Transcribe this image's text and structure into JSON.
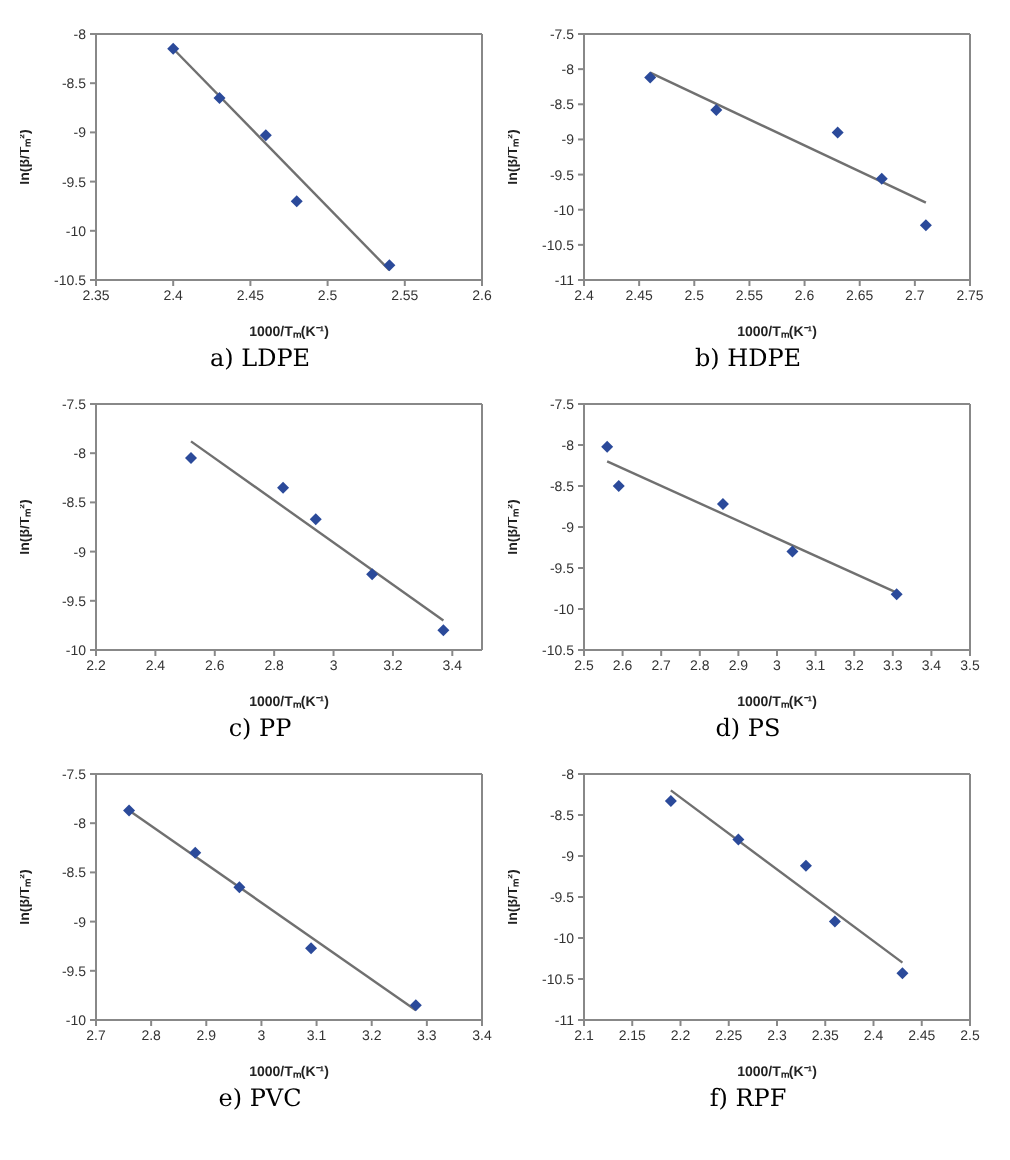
{
  "chart_data": [
    {
      "type": "scatter",
      "title": "a) LDPE",
      "xlabel": "1000/Tₘ(K⁻¹)",
      "ylabel": "ln(β/Tₘ²)",
      "xlim": [
        2.35,
        2.6
      ],
      "xticks": [
        2.35,
        2.4,
        2.45,
        2.5,
        2.55,
        2.6
      ],
      "ylim": [
        -10.5,
        -8
      ],
      "yticks": [
        -10.5,
        -10,
        -9.5,
        -9,
        -8.5,
        -8
      ],
      "series": [
        {
          "marker": "diamond",
          "color": "#2b4a9a",
          "x": [
            2.4,
            2.43,
            2.46,
            2.48,
            2.54
          ],
          "values": [
            -8.15,
            -8.65,
            -9.03,
            -9.7,
            -10.35
          ]
        },
        {
          "type": "line",
          "color": "#707070",
          "x": [
            2.4,
            2.54
          ],
          "values": [
            -8.15,
            -10.4
          ]
        }
      ]
    },
    {
      "type": "scatter",
      "title": "b) HDPE",
      "xlabel": "1000/Tₘ(K⁻¹)",
      "ylabel": "ln(β/Tₘ²)",
      "xlim": [
        2.4,
        2.75
      ],
      "xticks": [
        2.4,
        2.45,
        2.5,
        2.55,
        2.6,
        2.65,
        2.7,
        2.75
      ],
      "ylim": [
        -11,
        -7.5
      ],
      "yticks": [
        -11,
        -10.5,
        -10,
        -9.5,
        -9,
        -8.5,
        -8,
        -7.5
      ],
      "series": [
        {
          "marker": "diamond",
          "color": "#2b4a9a",
          "x": [
            2.46,
            2.52,
            2.63,
            2.67,
            2.71
          ],
          "values": [
            -8.12,
            -8.58,
            -8.9,
            -9.56,
            -10.22
          ]
        },
        {
          "type": "line",
          "color": "#707070",
          "x": [
            2.46,
            2.71
          ],
          "values": [
            -8.05,
            -9.9
          ]
        }
      ]
    },
    {
      "type": "scatter",
      "title": "c) PP",
      "xlabel": "1000/Tₘ(K⁻¹)",
      "ylabel": "ln(β/Tₘ²)",
      "xlim": [
        2.2,
        3.5
      ],
      "xticks": [
        2.2,
        2.4,
        2.6,
        2.8,
        3,
        3.2,
        3.4
      ],
      "ylim": [
        -10,
        -7.5
      ],
      "yticks": [
        -10,
        -9.5,
        -9,
        -8.5,
        -8,
        -7.5
      ],
      "series": [
        {
          "marker": "diamond",
          "color": "#2b4a9a",
          "x": [
            2.52,
            2.83,
            2.94,
            3.13,
            3.37
          ],
          "values": [
            -8.05,
            -8.35,
            -8.67,
            -9.23,
            -9.8
          ]
        },
        {
          "type": "line",
          "color": "#707070",
          "x": [
            2.52,
            3.37
          ],
          "values": [
            -7.88,
            -9.7
          ]
        }
      ]
    },
    {
      "type": "scatter",
      "title": "d) PS",
      "xlabel": "1000/Tₘ(K⁻¹)",
      "ylabel": "ln(β/Tₘ²)",
      "xlim": [
        2.5,
        3.5
      ],
      "xticks": [
        2.5,
        2.6,
        2.7,
        2.8,
        2.9,
        3,
        3.1,
        3.2,
        3.3,
        3.4,
        3.5
      ],
      "ylim": [
        -10.5,
        -7.5
      ],
      "yticks": [
        -10.5,
        -10,
        -9.5,
        -9,
        -8.5,
        -8,
        -7.5
      ],
      "series": [
        {
          "marker": "diamond",
          "color": "#2b4a9a",
          "x": [
            2.56,
            2.59,
            2.86,
            3.04,
            3.31
          ],
          "values": [
            -8.02,
            -8.5,
            -8.72,
            -9.3,
            -9.82
          ]
        },
        {
          "type": "line",
          "color": "#707070",
          "x": [
            2.56,
            3.31
          ],
          "values": [
            -8.2,
            -9.8
          ]
        }
      ]
    },
    {
      "type": "scatter",
      "title": "e) PVC",
      "xlabel": "1000/Tₘ(K⁻¹)",
      "ylabel": "ln(β/Tₘ²)",
      "xlim": [
        2.7,
        3.4
      ],
      "xticks": [
        2.7,
        2.8,
        2.9,
        3,
        3.1,
        3.2,
        3.3,
        3.4
      ],
      "ylim": [
        -10,
        -7.5
      ],
      "yticks": [
        -10,
        -9.5,
        -9,
        -8.5,
        -8,
        -7.5
      ],
      "series": [
        {
          "marker": "diamond",
          "color": "#2b4a9a",
          "x": [
            2.76,
            2.88,
            2.96,
            3.09,
            3.28
          ],
          "values": [
            -7.87,
            -8.3,
            -8.65,
            -9.27,
            -9.85
          ]
        },
        {
          "type": "line",
          "color": "#707070",
          "x": [
            2.76,
            3.28
          ],
          "values": [
            -7.87,
            -9.9
          ]
        }
      ]
    },
    {
      "type": "scatter",
      "title": "f) RPF",
      "xlabel": "1000/Tₘ(K⁻¹)",
      "ylabel": "ln(β/Tₘ²)",
      "xlim": [
        2.1,
        2.5
      ],
      "xticks": [
        2.1,
        2.15,
        2.2,
        2.25,
        2.3,
        2.35,
        2.4,
        2.45,
        2.5
      ],
      "ylim": [
        -11,
        -8
      ],
      "yticks": [
        -11,
        -10.5,
        -10,
        -9.5,
        -9,
        -8.5,
        -8
      ],
      "series": [
        {
          "marker": "diamond",
          "color": "#2b4a9a",
          "x": [
            2.19,
            2.26,
            2.33,
            2.36,
            2.43
          ],
          "values": [
            -8.33,
            -8.8,
            -9.12,
            -9.8,
            -10.43
          ]
        },
        {
          "type": "line",
          "color": "#707070",
          "x": [
            2.19,
            2.43
          ],
          "values": [
            -8.2,
            -10.3
          ]
        }
      ]
    }
  ]
}
